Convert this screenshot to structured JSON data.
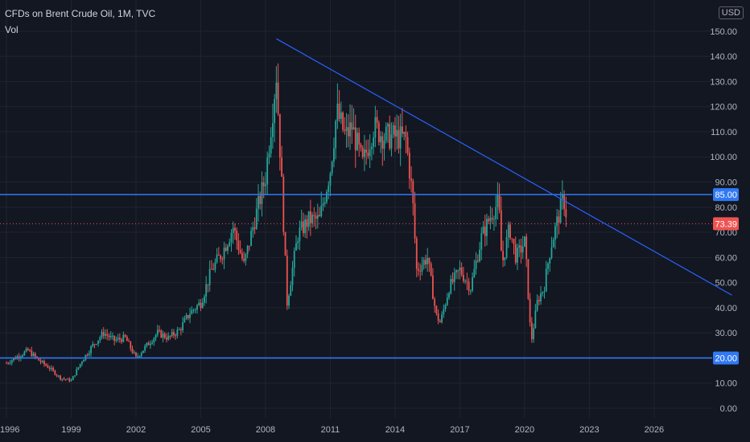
{
  "header": {
    "title": "CFDs on Brent Crude Oil, 1M, TVC",
    "indicator": "Vol"
  },
  "currency_label": "USD",
  "colors": {
    "background": "#131722",
    "grid": "#1f2430",
    "candle_up": "#26a69a",
    "candle_down": "#ef5350",
    "hline": "#3179f5",
    "trendline": "#2962ff",
    "price_tag": "#ef5350",
    "axis_text": "#b2b5be"
  },
  "chart_data": {
    "type": "candlestick",
    "title": "CFDs on Brent Crude Oil, 1M, TVC",
    "x_tick_labels": [
      "1996",
      "1999",
      "2002",
      "2005",
      "2008",
      "2011",
      "2014",
      "2017",
      "2020",
      "2023",
      "2026"
    ],
    "y_tick_labels": [
      "0.00",
      "10.00",
      "20.00",
      "30.00",
      "40.00",
      "50.00",
      "60.00",
      "70.00",
      "80.00",
      "90.00",
      "100.00",
      "110.00",
      "120.00",
      "130.00",
      "140.00",
      "150.00"
    ],
    "xlim": [
      1996.0,
      2029.6
    ],
    "ylim": [
      -2,
      155
    ],
    "anchor_closes": [
      [
        1996.0,
        18
      ],
      [
        1997.0,
        23
      ],
      [
        1997.5,
        19
      ],
      [
        1998.0,
        16
      ],
      [
        1998.5,
        12
      ],
      [
        1999.0,
        11
      ],
      [
        1999.5,
        19
      ],
      [
        2000.0,
        25
      ],
      [
        2000.5,
        30
      ],
      [
        2001.0,
        27
      ],
      [
        2001.5,
        28
      ],
      [
        2002.0,
        20
      ],
      [
        2002.5,
        25
      ],
      [
        2003.0,
        30
      ],
      [
        2003.5,
        28
      ],
      [
        2004.0,
        31
      ],
      [
        2004.5,
        38
      ],
      [
        2005.0,
        42
      ],
      [
        2005.5,
        55
      ],
      [
        2006.0,
        62
      ],
      [
        2006.5,
        72
      ],
      [
        2007.0,
        57
      ],
      [
        2007.5,
        75
      ],
      [
        2008.0,
        92
      ],
      [
        2008.5,
        133
      ],
      [
        2008.8,
        80
      ],
      [
        2009.0,
        42
      ],
      [
        2009.5,
        69
      ],
      [
        2010.0,
        75
      ],
      [
        2010.5,
        75
      ],
      [
        2011.0,
        95
      ],
      [
        2011.3,
        118
      ],
      [
        2011.7,
        108
      ],
      [
        2012.0,
        112
      ],
      [
        2012.5,
        97
      ],
      [
        2013.0,
        112
      ],
      [
        2013.5,
        108
      ],
      [
        2014.0,
        108
      ],
      [
        2014.5,
        107
      ],
      [
        2014.8,
        85
      ],
      [
        2015.0,
        55
      ],
      [
        2015.5,
        60
      ],
      [
        2015.9,
        37
      ],
      [
        2016.1,
        34
      ],
      [
        2016.5,
        48
      ],
      [
        2017.0,
        55
      ],
      [
        2017.5,
        48
      ],
      [
        2018.0,
        68
      ],
      [
        2018.5,
        78
      ],
      [
        2018.8,
        82
      ],
      [
        2018.95,
        57
      ],
      [
        2019.3,
        72
      ],
      [
        2019.6,
        60
      ],
      [
        2020.0,
        66
      ],
      [
        2020.1,
        55
      ],
      [
        2020.3,
        26
      ],
      [
        2020.6,
        43
      ],
      [
        2020.9,
        48
      ],
      [
        2021.2,
        64
      ],
      [
        2021.5,
        74
      ],
      [
        2021.8,
        84
      ],
      [
        2021.95,
        76
      ]
    ],
    "current_price": 73.39,
    "horizontal_lines": [
      85.0,
      20.0
    ],
    "trendline": {
      "start": [
        2008.5,
        147
      ],
      "end": [
        2029.6,
        45
      ]
    },
    "grid": true
  }
}
